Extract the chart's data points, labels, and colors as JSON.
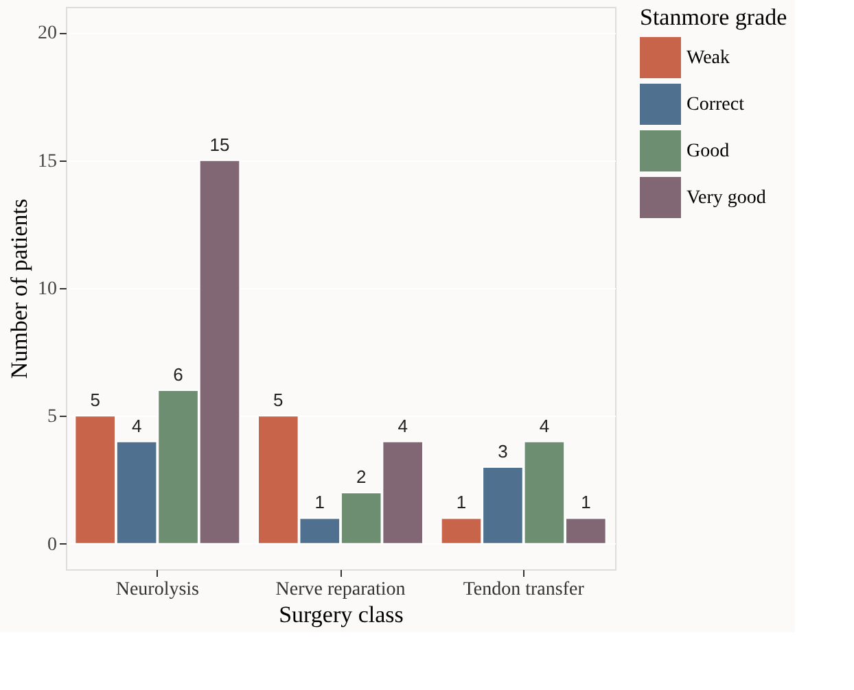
{
  "chart_data": {
    "type": "bar",
    "xlabel": "Surgery class",
    "ylabel": "Number of patients",
    "legend_title": "Stanmore grade",
    "categories": [
      "Neurolysis",
      "Nerve reparation",
      "Tendon transfer"
    ],
    "series": [
      {
        "name": "Weak",
        "color": "#c8644a",
        "values": [
          5,
          5,
          1
        ]
      },
      {
        "name": "Correct",
        "color": "#4f708e",
        "values": [
          4,
          1,
          3
        ]
      },
      {
        "name": "Good",
        "color": "#6e8e72",
        "values": [
          6,
          2,
          4
        ]
      },
      {
        "name": "Very good",
        "color": "#806773",
        "values": [
          15,
          4,
          1
        ]
      }
    ],
    "ylim": [
      -1,
      21
    ],
    "yticks": [
      0,
      5,
      10,
      15,
      20
    ],
    "grid": true,
    "legend": "right",
    "data_labels": true
  }
}
